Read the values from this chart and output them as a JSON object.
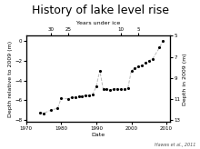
{
  "title": "History of lake level rise",
  "xlabel": "Date",
  "ylabel_left": "Depth relative to 2009 (m)",
  "ylabel_right": "Depth in 2009 (m)",
  "xlabel_top": "Years under ice",
  "citation": "Hawes et al., 2011",
  "xlim": [
    1970,
    2011
  ],
  "ylim_left": [
    -8.2,
    0.5
  ],
  "ylim_right": [
    13.2,
    5.0
  ],
  "xticks_bottom": [
    1970,
    1980,
    1990,
    2000,
    2010
  ],
  "xticks_top_labels": [
    "30",
    "25",
    "10",
    "5"
  ],
  "xticks_top_pos": [
    1977,
    1982,
    1997,
    2002
  ],
  "yticks_left": [
    0,
    -2,
    -4,
    -6,
    -8
  ],
  "yticks_right": [
    5,
    7,
    9,
    11,
    13
  ],
  "data_x": [
    1974,
    1975,
    1977,
    1979,
    1980,
    1982,
    1983,
    1984,
    1985,
    1986,
    1987,
    1988,
    1989,
    1990,
    1991,
    1992,
    1993,
    1994,
    1995,
    1996,
    1997,
    1998,
    1999,
    2000,
    2001,
    2002,
    2003,
    2004,
    2005,
    2006,
    2008,
    2009
  ],
  "data_y": [
    -7.2,
    -7.3,
    -7.0,
    -6.8,
    -5.8,
    -5.85,
    -5.7,
    -5.7,
    -5.6,
    -5.6,
    -5.5,
    -5.5,
    -5.4,
    -4.6,
    -3.0,
    -4.9,
    -4.9,
    -5.0,
    -4.85,
    -4.85,
    -4.9,
    -4.9,
    -4.8,
    -3.0,
    -2.8,
    -2.6,
    -2.5,
    -2.2,
    -2.0,
    -1.85,
    -0.7,
    0.0
  ],
  "line_color": "#bbbbbb",
  "marker_color": "black",
  "bg_color": "white",
  "title_fontsize": 9,
  "label_fontsize": 4.5,
  "tick_fontsize": 4.0,
  "citation_fontsize": 3.5
}
